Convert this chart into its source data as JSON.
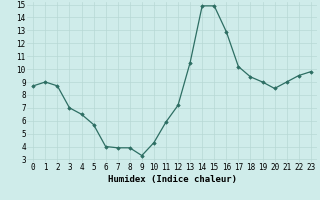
{
  "x": [
    0,
    1,
    2,
    3,
    4,
    5,
    6,
    7,
    8,
    9,
    10,
    11,
    12,
    13,
    14,
    15,
    16,
    17,
    18,
    19,
    20,
    21,
    22,
    23
  ],
  "y": [
    8.7,
    9.0,
    8.7,
    7.0,
    6.5,
    5.7,
    4.0,
    3.9,
    3.9,
    3.3,
    4.3,
    5.9,
    7.2,
    10.5,
    14.9,
    14.9,
    12.9,
    10.2,
    9.4,
    9.0,
    8.5,
    9.0,
    9.5,
    9.8
  ],
  "xlabel": "Humidex (Indice chaleur)",
  "xlim": [
    -0.5,
    23.5
  ],
  "ylim": [
    2.8,
    15.2
  ],
  "yticks": [
    3,
    4,
    5,
    6,
    7,
    8,
    9,
    10,
    11,
    12,
    13,
    14,
    15
  ],
  "xticks": [
    0,
    1,
    2,
    3,
    4,
    5,
    6,
    7,
    8,
    9,
    10,
    11,
    12,
    13,
    14,
    15,
    16,
    17,
    18,
    19,
    20,
    21,
    22,
    23
  ],
  "line_color": "#2d6e63",
  "marker": "D",
  "marker_size": 1.8,
  "bg_color": "#cfecea",
  "grid_color": "#b8d8d5",
  "label_fontsize": 6.5,
  "tick_fontsize": 5.5
}
